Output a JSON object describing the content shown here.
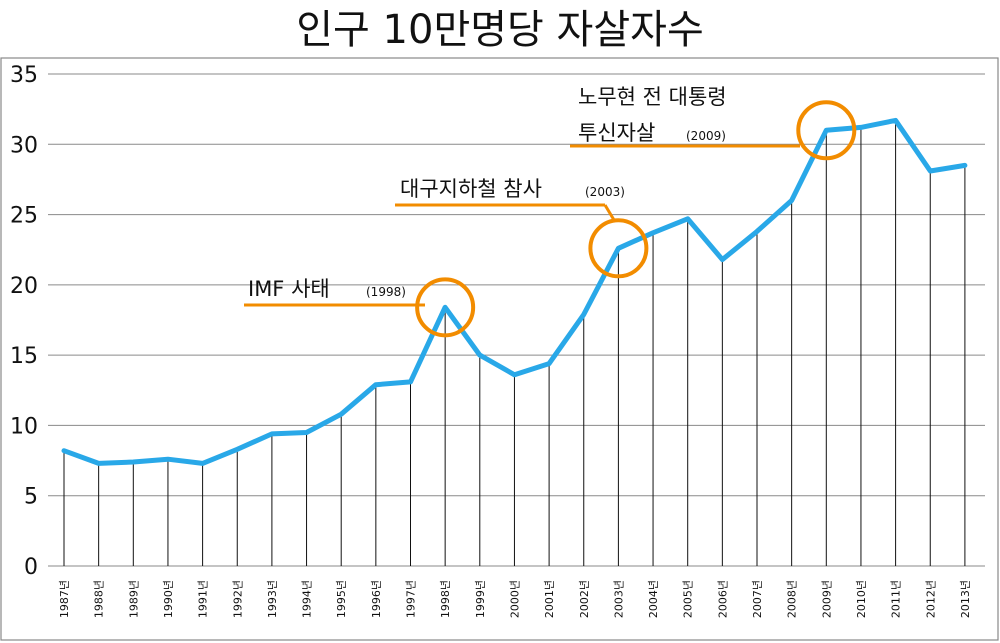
{
  "chart_data": {
    "type": "line",
    "title": "인구 10만명당 자살자수",
    "xlabel": "",
    "ylabel": "",
    "ylim": [
      0,
      35
    ],
    "yticks": [
      0,
      5,
      10,
      15,
      20,
      25,
      30,
      35
    ],
    "grid": true,
    "legend": "none",
    "categories": [
      "1987년",
      "1988년",
      "1989년",
      "1990년",
      "1991년",
      "1992년",
      "1993년",
      "1994년",
      "1995년",
      "1996년",
      "1997년",
      "1998년",
      "1999년",
      "2000년",
      "2001년",
      "2002년",
      "2003년",
      "2004년",
      "2005년",
      "2006년",
      "2007년",
      "2008년",
      "2009년",
      "2010년",
      "2011년",
      "2012년",
      "2013년"
    ],
    "series": [
      {
        "values": [
          8.2,
          7.3,
          7.4,
          7.6,
          7.3,
          8.3,
          9.4,
          9.5,
          10.8,
          12.9,
          13.1,
          18.4,
          15.0,
          13.6,
          14.4,
          17.9,
          22.6,
          23.7,
          24.7,
          21.8,
          23.8,
          26.0,
          31.0,
          31.2,
          31.7,
          28.1,
          28.5
        ],
        "color": "#29a8e8"
      }
    ],
    "drop_line_color": "#111111",
    "annotations": [
      {
        "main": "IMF  사태",
        "year": "(1998)",
        "category_index": 11,
        "color": "#f28c00"
      },
      {
        "main": "대구지하철 참사",
        "year": "(2003)",
        "category_index": 16,
        "color": "#f28c00"
      },
      {
        "main_line1": "노무현 전 대통령",
        "main_line2": "투신자살",
        "year": "(2009)",
        "category_index": 22,
        "color": "#f28c00"
      }
    ]
  }
}
